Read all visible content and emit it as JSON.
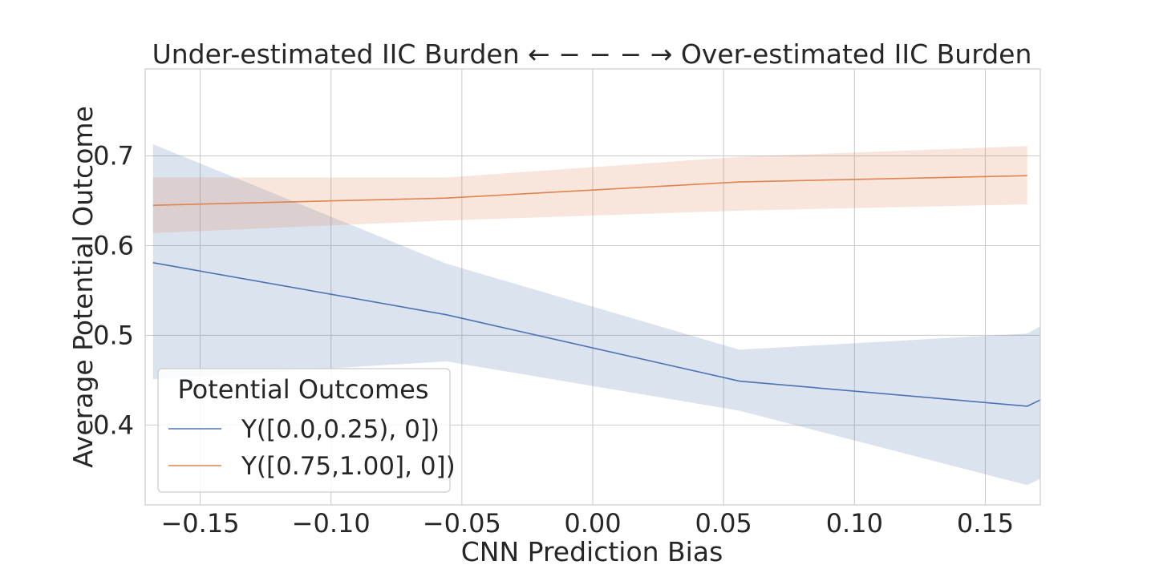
{
  "chart_data": {
    "type": "line",
    "title": "Under-estimated IIC Burden ← − − − → Over-estimated IIC Burden",
    "xlabel": "CNN Prediction Bias",
    "ylabel": "Average Potential Outcome",
    "xlim": [
      -0.171,
      0.171
    ],
    "ylim": [
      0.311,
      0.797
    ],
    "x_ticks": [
      -0.15,
      -0.1,
      -0.05,
      0.0,
      0.05,
      0.1,
      0.15
    ],
    "x_tick_labels": [
      "−0.15",
      "−0.10",
      "−0.05",
      "0.00",
      "0.05",
      "0.10",
      "0.15"
    ],
    "y_ticks": [
      0.4,
      0.5,
      0.6,
      0.7
    ],
    "y_tick_labels": [
      "0.4",
      "0.5",
      "0.6",
      "0.7"
    ],
    "grid": true,
    "legend": {
      "title": "Potential Outcomes",
      "position": "lower-left"
    },
    "series": [
      {
        "name": "Y([0.0,0.25), 0])",
        "color": "#4c72b0",
        "x": [
          -0.168,
          -0.056,
          0.056,
          0.166,
          0.171
        ],
        "y": [
          0.581,
          0.523,
          0.449,
          0.421,
          0.428
        ],
        "lower": [
          0.451,
          0.471,
          0.416,
          0.333,
          0.34
        ],
        "upper": [
          0.713,
          0.58,
          0.484,
          0.502,
          0.51
        ]
      },
      {
        "name": "Y([0.75,1.00], 0])",
        "color": "#dd8452",
        "x": [
          -0.168,
          -0.056,
          0.056,
          0.166
        ],
        "y": [
          0.645,
          0.653,
          0.671,
          0.678
        ],
        "lower": [
          0.614,
          0.628,
          0.639,
          0.646
        ],
        "upper": [
          0.676,
          0.676,
          0.699,
          0.711
        ]
      }
    ]
  }
}
